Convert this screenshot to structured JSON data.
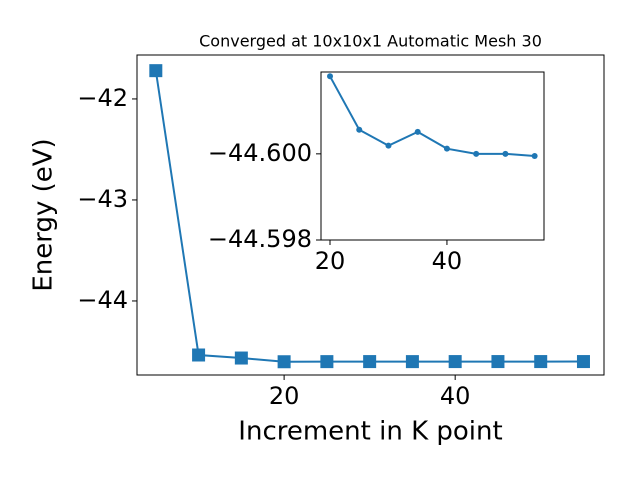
{
  "chart_data": [
    {
      "type": "line",
      "title": "Converged at 10x10x1 Automatic Mesh 30",
      "x_label": "Increment in K point",
      "y_label": "Energy (eV)",
      "x": [
        5,
        10,
        15,
        20,
        25,
        30,
        35,
        40,
        45,
        50,
        55
      ],
      "values": [
        -41.72,
        -44.535,
        -44.565,
        -44.6018,
        -44.60056,
        -44.60019,
        -44.60051,
        -44.60012,
        -44.6,
        -44.6,
        -44.59995
      ],
      "color": "#1f77b4",
      "marker": "square",
      "xlim": [
        2.8,
        57.4
      ],
      "ylim": [
        -44.733,
        -41.565
      ],
      "xticks": [
        20,
        40
      ],
      "yticks": [
        {
          "value": -44,
          "label": "−44"
        },
        {
          "value": -43,
          "label": "−43"
        },
        {
          "value": -42,
          "label": "−42"
        }
      ]
    },
    {
      "type": "line",
      "x": [
        20,
        25,
        30,
        35,
        40,
        45,
        50,
        55
      ],
      "values": [
        -44.6018,
        -44.60056,
        -44.60019,
        -44.60051,
        -44.60012,
        -44.6,
        -44.6,
        -44.59995
      ],
      "color": "#1f77b4",
      "marker": "circle",
      "xlim": [
        18.46,
        56.6
      ],
      "ylim": [
        -44.598,
        -44.6019
      ],
      "xticks": [
        20,
        40
      ],
      "yticks": [
        {
          "value": -44.6,
          "label": "−44.600"
        },
        {
          "value": -44.598,
          "label": "−44.598"
        }
      ]
    }
  ]
}
